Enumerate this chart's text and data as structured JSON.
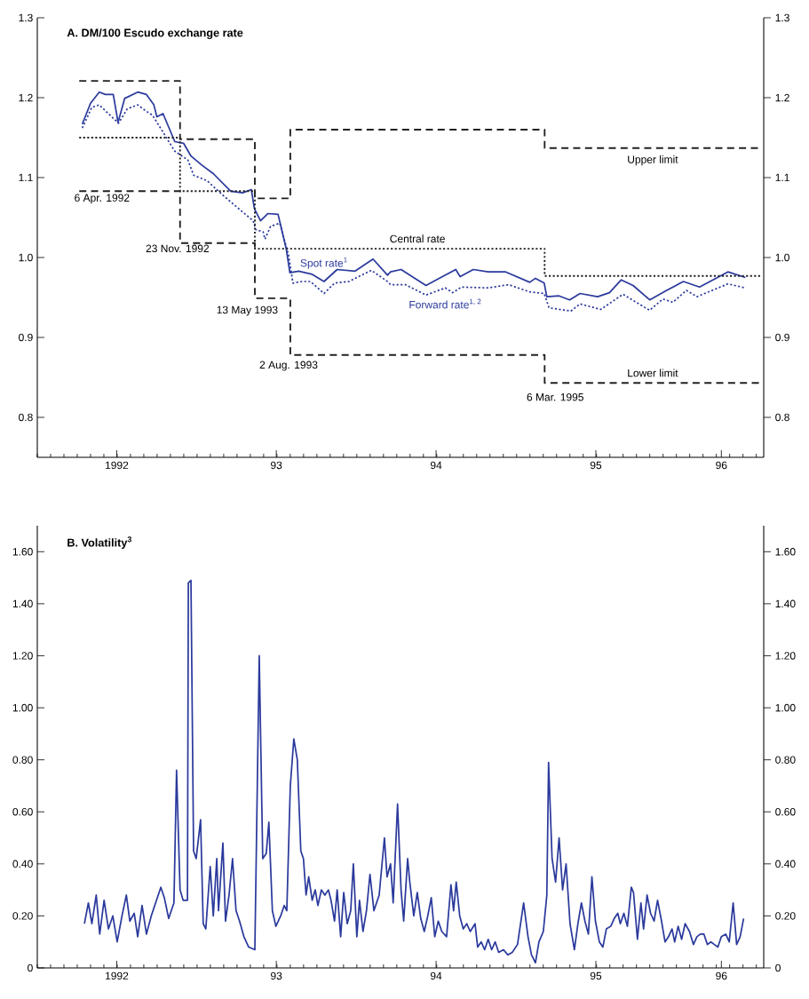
{
  "chart_data": [
    {
      "type": "line",
      "title": "A.  DM/100 Escudo exchange rate",
      "xlim": [
        "1992-01-01",
        "1996-07-19"
      ],
      "xticks": [
        {
          "value": "1992-07-01",
          "label": "1992"
        },
        {
          "value": "1993-07-01",
          "label": "93"
        },
        {
          "value": "1994-07-01",
          "label": "94"
        },
        {
          "value": "1995-07-01",
          "label": "95"
        },
        {
          "value": "1996-04-13",
          "label": "96"
        }
      ],
      "ylim": [
        0.75,
        1.3
      ],
      "yticks": [
        0.8,
        0.9,
        {
          "value": 1.0,
          "label": "1.0"
        },
        1.1,
        1.2,
        1.3
      ],
      "y2lim": [
        0.75,
        1.3
      ],
      "y2ticks": [
        0.8,
        0.9,
        {
          "value": 1.0,
          "label": "1.0"
        },
        1.1,
        1.2,
        1.3
      ],
      "series": [
        {
          "name": "Spot rate$^{1}$",
          "color": "#2b3a9c",
          "line_style": "solid",
          "x": [
            "1992-04-13",
            "1992-05-02",
            "1992-05-22",
            "1992-06-05",
            "1992-06-23",
            "1992-07-04",
            "1992-07-19",
            "1992-08-18",
            "1992-09-07",
            "1992-09-24",
            "1992-10-01",
            "1992-10-15",
            "1992-11-11",
            "1992-12-01",
            "1992-12-18",
            "1993-01-11",
            "1993-02-07",
            "1993-03-19",
            "1993-04-15",
            "1993-05-05",
            "1993-05-12",
            "1993-05-26",
            "1993-06-12",
            "1993-07-05",
            "1993-07-24",
            "1993-08-01",
            "1993-08-21",
            "1993-09-21",
            "1993-10-18",
            "1993-11-17",
            "1993-12-28",
            "1994-02-07",
            "1994-03-12",
            "1994-03-19",
            "1994-04-12",
            "1994-06-08",
            "1994-07-05",
            "1994-08-15",
            "1994-08-25",
            "1994-09-24",
            "1994-10-28",
            "1994-12-07",
            "1995-01-31",
            "1995-02-13",
            "1995-03-05",
            "1995-03-11",
            "1995-04-08",
            "1995-05-02",
            "1995-05-26",
            "1995-07-05",
            "1995-08-01",
            "1995-08-28",
            "1995-09-24",
            "1995-11-01",
            "1995-12-07",
            "1996-01-17",
            "1996-02-23",
            "1996-04-28",
            "1996-06-07"
          ],
          "values": [
            1.167,
            1.193,
            1.207,
            1.204,
            1.204,
            1.169,
            1.199,
            1.207,
            1.204,
            1.191,
            1.176,
            1.18,
            1.145,
            1.143,
            1.127,
            1.116,
            1.105,
            1.083,
            1.081,
            1.085,
            1.061,
            1.046,
            1.055,
            1.054,
            1.01,
            0.981,
            0.983,
            0.979,
            0.97,
            0.985,
            0.983,
            0.998,
            0.978,
            0.982,
            0.985,
            0.965,
            0.973,
            0.985,
            0.976,
            0.985,
            0.982,
            0.982,
            0.969,
            0.974,
            0.968,
            0.951,
            0.952,
            0.947,
            0.955,
            0.951,
            0.956,
            0.972,
            0.965,
            0.947,
            0.958,
            0.97,
            0.963,
            0.982,
            0.975
          ]
        },
        {
          "name": "Forward rate$^{1, 2}$",
          "color": "#2b3a9c",
          "line_style": "dotted",
          "x": [
            "1992-04-13",
            "1992-05-05",
            "1992-05-22",
            "1992-06-12",
            "1992-07-05",
            "1992-07-25",
            "1992-08-18",
            "1992-09-04",
            "1992-09-21",
            "1992-11-11",
            "1992-12-11",
            "1992-12-24",
            "1993-01-24",
            "1993-03-05",
            "1993-04-15",
            "1993-05-09",
            "1993-05-15",
            "1993-06-01",
            "1993-06-05",
            "1993-06-18",
            "1993-07-09",
            "1993-07-29",
            "1993-08-08",
            "1993-08-28",
            "1993-09-17",
            "1993-10-18",
            "1993-11-11",
            "1993-12-14",
            "1994-02-03",
            "1994-03-12",
            "1994-03-19",
            "1994-04-22",
            "1994-06-08",
            "1994-07-22",
            "1994-08-08",
            "1994-08-28",
            "1994-10-28",
            "1994-12-14",
            "1995-01-31",
            "1995-03-05",
            "1995-03-16",
            "1995-05-05",
            "1995-05-26",
            "1995-07-12",
            "1995-09-01",
            "1995-10-01",
            "1995-11-01",
            "1995-12-01",
            "1995-12-24",
            "1996-01-24",
            "1996-02-17",
            "1996-04-28",
            "1996-06-07"
          ],
          "values": [
            1.162,
            1.188,
            1.191,
            1.18,
            1.168,
            1.186,
            1.191,
            1.184,
            1.178,
            1.133,
            1.122,
            1.103,
            1.096,
            1.076,
            1.057,
            1.046,
            1.035,
            1.032,
            1.023,
            1.039,
            1.043,
            1.003,
            0.968,
            0.97,
            0.97,
            0.955,
            0.968,
            0.97,
            0.984,
            0.97,
            0.966,
            0.966,
            0.953,
            0.962,
            0.956,
            0.963,
            0.962,
            0.966,
            0.957,
            0.955,
            0.937,
            0.933,
            0.942,
            0.935,
            0.954,
            0.944,
            0.934,
            0.948,
            0.944,
            0.959,
            0.951,
            0.967,
            0.962
          ]
        },
        {
          "name": "Upper limit",
          "type": "step",
          "color": "#222222",
          "line_style": "dashed",
          "x": [
            "1992-04-06",
            "1992-11-23",
            "1993-05-13",
            "1993-08-02",
            "1995-03-06",
            "1996-07-12"
          ],
          "values": [
            1.221,
            1.148,
            1.074,
            1.16,
            1.137,
            1.137
          ]
        },
        {
          "name": "Central rate",
          "type": "step",
          "color": "#222222",
          "line_style": "dotted",
          "x": [
            "1992-04-06",
            "1992-11-23",
            "1993-05-13",
            "1993-08-02",
            "1995-03-06",
            "1996-07-12"
          ],
          "values": [
            1.15,
            1.083,
            1.011,
            1.011,
            0.977,
            0.977
          ]
        },
        {
          "name": "Lower limit",
          "type": "step",
          "color": "#222222",
          "line_style": "dashed",
          "x": [
            "1992-04-06",
            "1992-11-23",
            "1993-05-13",
            "1993-08-02",
            "1995-03-06",
            "1996-07-12"
          ],
          "values": [
            1.083,
            1.018,
            0.949,
            0.878,
            0.843,
            0.843
          ]
        }
      ],
      "annotations": [
        "6 Apr. 1992",
        "23 Nov. 1992",
        "13 May 1993",
        "2 Aug. 1993",
        "6 Mar. 1995"
      ]
    },
    {
      "type": "line",
      "title": "B.  Volatility$^{3}$",
      "xlim": [
        "1992-01-01",
        "1996-07-19"
      ],
      "xticks": [
        {
          "value": "1992-07-01",
          "label": "1992"
        },
        {
          "value": "1993-07-01",
          "label": "93"
        },
        {
          "value": "1994-07-01",
          "label": "94"
        },
        {
          "value": "1995-07-01",
          "label": "95"
        },
        {
          "value": "1996-04-13",
          "label": "96"
        }
      ],
      "ylim": [
        0,
        1.7
      ],
      "yticks": [
        0,
        {
          "value": 0.2,
          "label": "0.20"
        },
        {
          "value": 0.4,
          "label": "0.40"
        },
        {
          "value": 0.6,
          "label": "0.60"
        },
        {
          "value": 0.8,
          "label": "0.80"
        },
        {
          "value": 1.0,
          "label": "1.00"
        },
        {
          "value": 1.2,
          "label": "1.20"
        },
        {
          "value": 1.4,
          "label": "1.40"
        },
        {
          "value": 1.6,
          "label": "1.60"
        }
      ],
      "y2lim": [
        0,
        1.7
      ],
      "y2ticks": [
        0,
        {
          "value": 0.2,
          "label": "0.20"
        },
        {
          "value": 0.4,
          "label": "0.40"
        },
        {
          "value": 0.6,
          "label": "0.60"
        },
        {
          "value": 0.8,
          "label": "0.80"
        },
        {
          "value": 1.0,
          "label": "1.00"
        },
        {
          "value": 1.2,
          "label": "1.20"
        },
        {
          "value": 1.4,
          "label": "1.40"
        },
        {
          "value": 1.6,
          "label": "1.60"
        }
      ],
      "series": [
        {
          "color": "#2b3a9c",
          "line_style": "solid",
          "x": [
            "1992-04-18",
            "1992-04-27",
            "1992-05-05",
            "1992-05-15",
            "1992-05-23",
            "1992-06-02",
            "1992-06-12",
            "1992-06-22",
            "1992-07-02",
            "1992-07-13",
            "1992-07-23",
            "1992-07-31",
            "1992-08-10",
            "1992-08-18",
            "1992-08-28",
            "1992-09-07",
            "1992-09-18",
            "1992-09-28",
            "1992-10-10",
            "1992-10-18",
            "1992-10-28",
            "1992-11-09",
            "1992-11-15",
            "1992-11-23",
            "1992-11-30",
            "1992-12-10",
            "1992-12-12",
            "1992-12-18",
            "1992-12-24",
            "1992-12-30",
            "1993-01-09",
            "1993-01-15",
            "1993-01-21",
            "1993-01-31",
            "1993-02-07",
            "1993-02-15",
            "1993-02-19",
            "1993-03-01",
            "1993-03-07",
            "1993-03-15",
            "1993-03-23",
            "1993-03-31",
            "1993-04-08",
            "1993-04-18",
            "1993-04-29",
            "1993-05-13",
            "1993-05-23",
            "1993-05-31",
            "1993-06-08",
            "1993-06-14",
            "1993-06-22",
            "1993-06-30",
            "1993-07-11",
            "1993-07-19",
            "1993-07-25",
            "1993-08-02",
            "1993-08-10",
            "1993-08-18",
            "1993-08-26",
            "1993-09-01",
            "1993-09-07",
            "1993-09-13",
            "1993-09-21",
            "1993-09-28",
            "1993-10-04",
            "1993-10-12",
            "1993-10-20",
            "1993-10-28",
            "1993-11-03",
            "1993-11-11",
            "1993-11-17",
            "1993-11-25",
            "1993-12-02",
            "1993-12-10",
            "1993-12-18",
            "1993-12-24",
            "1994-01-01",
            "1994-01-07",
            "1994-01-15",
            "1994-01-23",
            "1994-01-31",
            "1994-02-09",
            "1994-02-21",
            "1994-03-05",
            "1994-03-11",
            "1994-03-19",
            "1994-03-25",
            "1994-04-04",
            "1994-04-12",
            "1994-04-18",
            "1994-04-27",
            "1994-05-02",
            "1994-05-11",
            "1994-05-19",
            "1994-05-27",
            "1994-06-04",
            "1994-06-12",
            "1994-06-20",
            "1994-06-28",
            "1994-07-06",
            "1994-07-14",
            "1994-07-25",
            "1994-08-04",
            "1994-08-10",
            "1994-08-16",
            "1994-08-24",
            "1994-09-01",
            "1994-09-09",
            "1994-09-17",
            "1994-09-28",
            "1994-10-04",
            "1994-10-12",
            "1994-10-20",
            "1994-10-28",
            "1994-11-05",
            "1994-11-13",
            "1994-11-21",
            "1994-12-02",
            "1994-12-12",
            "1994-12-22",
            "1995-01-03",
            "1995-01-17",
            "1995-01-27",
            "1995-02-04",
            "1995-02-13",
            "1995-02-21",
            "1995-03-03",
            "1995-03-11",
            "1995-03-15",
            "1995-03-23",
            "1995-03-31",
            "1995-04-08",
            "1995-04-16",
            "1995-04-24",
            "1995-05-03",
            "1995-05-13",
            "1995-05-21",
            "1995-05-29",
            "1995-06-06",
            "1995-06-14",
            "1995-06-22",
            "1995-06-30",
            "1995-07-09",
            "1995-07-17",
            "1995-07-25",
            "1995-08-04",
            "1995-08-12",
            "1995-08-20",
            "1995-08-26",
            "1995-09-03",
            "1995-09-11",
            "1995-09-20",
            "1995-09-25",
            "1995-10-04",
            "1995-10-12",
            "1995-10-18",
            "1995-10-26",
            "1995-11-03",
            "1995-11-11",
            "1995-11-19",
            "1995-11-28",
            "1995-12-06",
            "1995-12-14",
            "1995-12-22",
            "1995-12-28",
            "1996-01-05",
            "1996-01-13",
            "1996-01-21",
            "1996-01-31",
            "1996-02-09",
            "1996-02-17",
            "1996-02-25",
            "1996-03-04",
            "1996-03-12",
            "1996-03-20",
            "1996-03-28",
            "1996-04-05",
            "1996-04-13",
            "1996-04-23",
            "1996-05-01",
            "1996-05-10",
            "1996-05-18",
            "1996-05-26",
            "1996-06-03"
          ],
          "values": [
            0.17,
            0.25,
            0.17,
            0.28,
            0.13,
            0.26,
            0.15,
            0.2,
            0.1,
            0.2,
            0.28,
            0.18,
            0.21,
            0.12,
            0.24,
            0.13,
            0.2,
            0.25,
            0.31,
            0.27,
            0.19,
            0.25,
            0.76,
            0.3,
            0.26,
            0.26,
            1.48,
            1.49,
            0.45,
            0.42,
            0.57,
            0.17,
            0.15,
            0.39,
            0.2,
            0.42,
            0.22,
            0.48,
            0.18,
            0.28,
            0.42,
            0.22,
            0.18,
            0.12,
            0.08,
            0.07,
            1.2,
            0.42,
            0.44,
            0.56,
            0.22,
            0.16,
            0.2,
            0.24,
            0.22,
            0.7,
            0.88,
            0.8,
            0.45,
            0.42,
            0.28,
            0.35,
            0.26,
            0.3,
            0.24,
            0.3,
            0.28,
            0.3,
            0.26,
            0.18,
            0.3,
            0.12,
            0.29,
            0.17,
            0.22,
            0.4,
            0.12,
            0.26,
            0.14,
            0.22,
            0.36,
            0.22,
            0.28,
            0.5,
            0.35,
            0.4,
            0.25,
            0.63,
            0.3,
            0.18,
            0.42,
            0.33,
            0.2,
            0.29,
            0.19,
            0.14,
            0.2,
            0.27,
            0.12,
            0.18,
            0.14,
            0.12,
            0.32,
            0.22,
            0.33,
            0.2,
            0.15,
            0.17,
            0.14,
            0.17,
            0.08,
            0.1,
            0.07,
            0.11,
            0.07,
            0.1,
            0.06,
            0.07,
            0.05,
            0.06,
            0.09,
            0.25,
            0.12,
            0.05,
            0.02,
            0.1,
            0.14,
            0.28,
            0.79,
            0.42,
            0.33,
            0.5,
            0.3,
            0.4,
            0.17,
            0.07,
            0.17,
            0.25,
            0.18,
            0.13,
            0.35,
            0.18,
            0.1,
            0.08,
            0.15,
            0.16,
            0.19,
            0.21,
            0.17,
            0.21,
            0.16,
            0.31,
            0.29,
            0.11,
            0.25,
            0.15,
            0.28,
            0.21,
            0.18,
            0.26,
            0.18,
            0.1,
            0.12,
            0.15,
            0.1,
            0.16,
            0.11,
            0.17,
            0.14,
            0.09,
            0.12,
            0.13,
            0.13,
            0.09,
            0.1,
            0.09,
            0.08,
            0.12,
            0.13,
            0.1,
            0.25,
            0.09,
            0.12,
            0.19
          ]
        }
      ]
    }
  ]
}
